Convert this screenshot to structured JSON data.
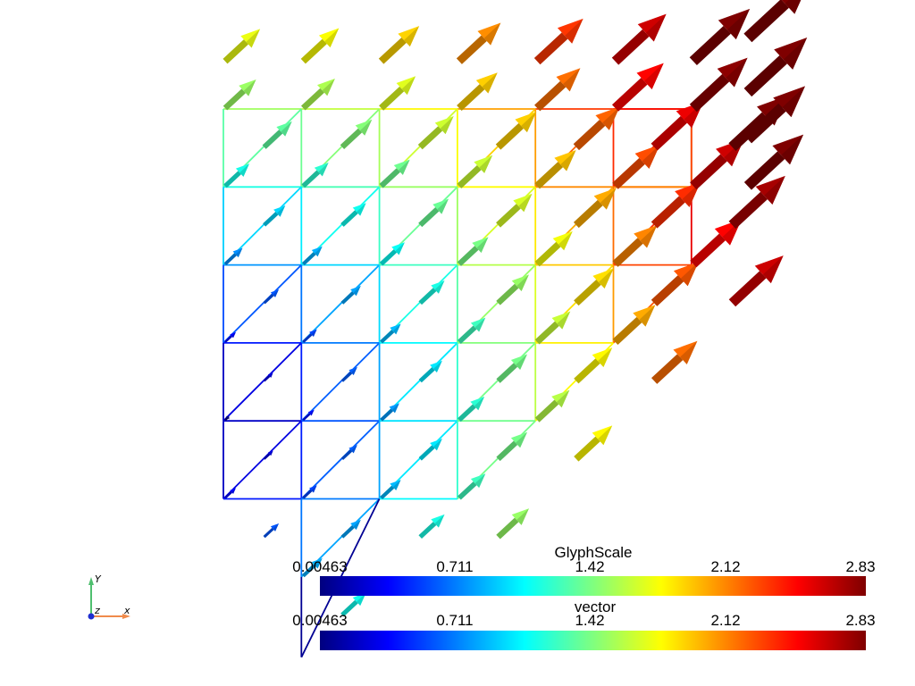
{
  "scene": {
    "grid_rows": [
      {
        "y": 4,
        "x_from": 0,
        "x_to": 6
      },
      {
        "y": 3,
        "x_from": 0,
        "x_to": 6
      },
      {
        "y": 2,
        "x_from": 0,
        "x_to": 6
      },
      {
        "y": 1,
        "x_from": 0,
        "x_to": 5
      },
      {
        "y": 0,
        "x_from": 0,
        "x_to": 4
      },
      {
        "y": -1,
        "x_from": 0,
        "x_to": 3
      },
      {
        "y": -2,
        "x_from": 1,
        "x_to": 1
      }
    ],
    "colormap": [
      "#00007f",
      "#0000ff",
      "#007fff",
      "#00ffff",
      "#7fff7f",
      "#ffff00",
      "#ff7f00",
      "#ff0000",
      "#7f0000"
    ]
  },
  "colorbars": [
    {
      "title": "GlyphScale",
      "ticks": [
        "0.00463",
        "0.711",
        "1.42",
        "2.12",
        "2.83"
      ]
    },
    {
      "title": "vector",
      "ticks": [
        "0.00463",
        "0.711",
        "1.42",
        "2.12",
        "2.83"
      ]
    }
  ],
  "axes": {
    "y_label": "Y",
    "z_label": "z",
    "x_label": "x"
  }
}
